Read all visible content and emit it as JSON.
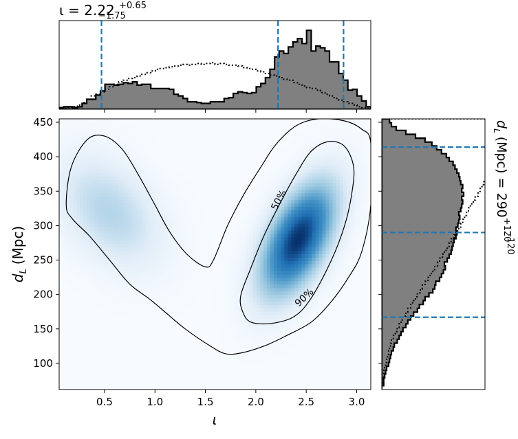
{
  "chart_data": [
    {
      "type": "histogram",
      "panel": "top-marginal",
      "title_base": "ι = 2.22",
      "title_sup": "+0.65",
      "title_sub": "−1.75",
      "x_range": [
        0.05,
        3.14
      ],
      "edges_x": [
        0.05,
        3.14
      ],
      "posterior_heights": [
        0.02,
        0.03,
        0.03,
        0.02,
        0.03,
        0.07,
        0.12,
        0.12,
        0.17,
        0.22,
        0.3,
        0.3,
        0.29,
        0.3,
        0.32,
        0.31,
        0.33,
        0.29,
        0.3,
        0.3,
        0.25,
        0.25,
        0.25,
        0.25,
        0.24,
        0.18,
        0.16,
        0.13,
        0.09,
        0.09,
        0.08,
        0.07,
        0.07,
        0.09,
        0.09,
        0.09,
        0.13,
        0.14,
        0.19,
        0.21,
        0.2,
        0.19,
        0.2,
        0.27,
        0.31,
        0.38,
        0.48,
        0.63,
        0.7,
        0.67,
        0.75,
        0.81,
        0.85,
        0.79,
        0.95,
        0.7,
        0.76,
        0.74,
        0.7,
        0.57,
        0.57,
        0.43,
        0.35,
        0.23,
        0.24,
        0.16,
        0.1,
        0.03
      ],
      "prior_heights": [
        0.0,
        0.01,
        0.02,
        0.03,
        0.05,
        0.08,
        0.12,
        0.16,
        0.18,
        0.21,
        0.24,
        0.27,
        0.3,
        0.33,
        0.35,
        0.37,
        0.38,
        0.4,
        0.42,
        0.44,
        0.46,
        0.48,
        0.49,
        0.5,
        0.51,
        0.52,
        0.53,
        0.54,
        0.53,
        0.54,
        0.55,
        0.54,
        0.55,
        0.56,
        0.54,
        0.55,
        0.54,
        0.53,
        0.53,
        0.52,
        0.5,
        0.49,
        0.48,
        0.46,
        0.45,
        0.43,
        0.41,
        0.4,
        0.38,
        0.36,
        0.35,
        0.32,
        0.3,
        0.28,
        0.26,
        0.25,
        0.23,
        0.2,
        0.18,
        0.16,
        0.13,
        0.11,
        0.09,
        0.07,
        0.05,
        0.03,
        0.02,
        0.01
      ],
      "quantile_lines": [
        0.47,
        2.22,
        2.87
      ]
    },
    {
      "type": "heatmap",
      "panel": "main-joint",
      "xlabel": "ι",
      "ylabel_main": "d",
      "ylabel_sub": "L",
      "ylabel_unit": "(Mpc)",
      "xlim": [
        0.05,
        3.14
      ],
      "ylim": [
        62,
        455
      ],
      "xticks": [
        "0.5",
        "1.0",
        "1.5",
        "2.0",
        "2.5",
        "3.0"
      ],
      "xtick_values": [
        0.5,
        1.0,
        1.5,
        2.0,
        2.5,
        3.0
      ],
      "yticks": [
        "100",
        "150",
        "200",
        "250",
        "300",
        "350",
        "400",
        "450"
      ],
      "ytick_values": [
        100,
        150,
        200,
        250,
        300,
        350,
        400,
        450
      ],
      "contour_labels": [
        "50%",
        "90%"
      ],
      "density_peaks": [
        {
          "x": 2.42,
          "y": 280,
          "sx": 0.25,
          "sy": 55,
          "amp": 1.0,
          "tilt": 0.55
        },
        {
          "x": 0.55,
          "y": 320,
          "sx": 0.35,
          "sy": 55,
          "amp": 0.28,
          "tilt": -0.4
        }
      ],
      "contour_90": [
        [
          0.12,
          330
        ],
        [
          0.17,
          385
        ],
        [
          0.33,
          425
        ],
        [
          0.5,
          430
        ],
        [
          0.68,
          410
        ],
        [
          0.85,
          370
        ],
        [
          1.0,
          330
        ],
        [
          1.15,
          290
        ],
        [
          1.32,
          258
        ],
        [
          1.5,
          240
        ],
        [
          1.58,
          250
        ],
        [
          1.72,
          300
        ],
        [
          1.88,
          345
        ],
        [
          2.05,
          385
        ],
        [
          2.2,
          418
        ],
        [
          2.4,
          445
        ],
        [
          2.62,
          455
        ],
        [
          2.88,
          452
        ],
        [
          3.05,
          440
        ],
        [
          3.14,
          420
        ],
        [
          3.14,
          330
        ],
        [
          3.05,
          262
        ],
        [
          2.92,
          225
        ],
        [
          2.75,
          190
        ],
        [
          2.55,
          160
        ],
        [
          2.3,
          140
        ],
        [
          2.08,
          125
        ],
        [
          1.85,
          115
        ],
        [
          1.7,
          114
        ],
        [
          1.55,
          125
        ],
        [
          1.3,
          150
        ],
        [
          1.12,
          172
        ],
        [
          0.95,
          193
        ],
        [
          0.75,
          215
        ],
        [
          0.55,
          250
        ],
        [
          0.35,
          285
        ],
        [
          0.18,
          310
        ]
      ],
      "contour_50": [
        [
          1.87,
          175
        ],
        [
          1.85,
          198
        ],
        [
          1.95,
          238
        ],
        [
          2.08,
          285
        ],
        [
          2.25,
          335
        ],
        [
          2.4,
          375
        ],
        [
          2.55,
          408
        ],
        [
          2.72,
          422
        ],
        [
          2.88,
          415
        ],
        [
          2.97,
          385
        ],
        [
          2.95,
          345
        ],
        [
          2.88,
          300
        ],
        [
          2.75,
          250
        ],
        [
          2.55,
          195
        ],
        [
          2.38,
          168
        ],
        [
          2.15,
          158
        ],
        [
          1.95,
          160
        ]
      ]
    },
    {
      "type": "histogram",
      "panel": "right-marginal",
      "title_base": "d",
      "title_sub_letter": "L",
      "title_unit": "(Mpc) = 290",
      "title_sup": "+120",
      "title_sub": "−120",
      "y_range": [
        62,
        455
      ],
      "posterior_widths": [
        0.0,
        0.02,
        0.02,
        0.03,
        0.04,
        0.05,
        0.07,
        0.08,
        0.09,
        0.1,
        0.12,
        0.13,
        0.16,
        0.18,
        0.2,
        0.22,
        0.25,
        0.27,
        0.3,
        0.33,
        0.37,
        0.39,
        0.43,
        0.45,
        0.49,
        0.53,
        0.55,
        0.56,
        0.6,
        0.62,
        0.64,
        0.66,
        0.65,
        0.68,
        0.7,
        0.72,
        0.73,
        0.74,
        0.75,
        0.77,
        0.78,
        0.77,
        0.79,
        0.8,
        0.81,
        0.8,
        0.82,
        0.83,
        0.84,
        0.83,
        0.85,
        0.83,
        0.84,
        0.82,
        0.81,
        0.8,
        0.78,
        0.76,
        0.74,
        0.7,
        0.67,
        0.62,
        0.57,
        0.52,
        0.45,
        0.35,
        0.25,
        0.15,
        0.1,
        0.08
      ],
      "prior_widths": [
        0.0,
        0.01,
        0.01,
        0.02,
        0.02,
        0.03,
        0.04,
        0.05,
        0.06,
        0.07,
        0.08,
        0.09,
        0.1,
        0.12,
        0.14,
        0.16,
        0.18,
        0.2,
        0.22,
        0.25,
        0.27,
        0.3,
        0.32,
        0.35,
        0.37,
        0.4,
        0.42,
        0.45,
        0.48,
        0.5,
        0.53,
        0.55,
        0.58,
        0.6,
        0.63,
        0.65,
        0.68,
        0.7,
        0.72,
        0.75,
        0.77,
        0.8,
        0.82,
        0.84,
        0.86,
        0.88,
        0.9,
        0.92,
        0.95,
        0.97,
        1.0,
        1.02,
        1.04,
        1.06,
        1.08,
        1.1,
        1.12,
        1.14,
        1.16,
        1.18,
        1.2,
        1.22,
        1.24,
        1.26,
        1.28,
        1.3,
        1.32,
        1.34,
        1.36,
        1.38
      ],
      "quantile_lines": [
        167,
        290,
        414
      ]
    }
  ],
  "colors": {
    "hist_fill": "#808080",
    "quantile_line": "#1f77b4",
    "heat_low": "#f7fbff",
    "heat_high": "#08306b"
  }
}
